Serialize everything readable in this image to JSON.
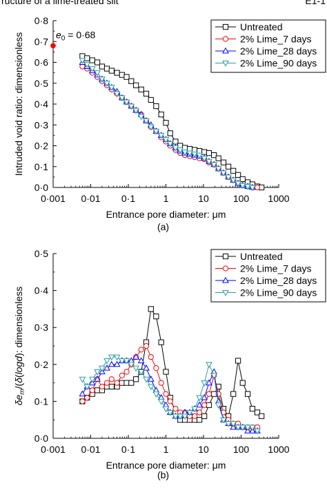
{
  "header": {
    "left": "ructure of a lime-treated silt",
    "right": "E1-1"
  },
  "chart_data": [
    {
      "panel": "(a)",
      "type": "line",
      "x_scale": "log",
      "xlim": [
        0.001,
        1000
      ],
      "ylim": [
        0,
        0.8
      ],
      "x_ticks": [
        "0·001",
        "0·01",
        "0·1",
        "1",
        "10",
        "100",
        "1000"
      ],
      "y_ticks": [
        "0·0",
        "0·1",
        "0·2",
        "0·3",
        "0·4",
        "0·5",
        "0·6",
        "0·7",
        "0·8"
      ],
      "xlabel": "Entrance pore diameter: μm",
      "ylabel": "Intruded void ratio: dimensionless",
      "annotation": {
        "symbol": "e",
        "subscript": "0",
        "text": " = 0·68",
        "x": 0.001,
        "y": 0.68
      },
      "legend_position": "top-right",
      "series": [
        {
          "name": "Untreated",
          "color": "#000000",
          "marker": "square",
          "x": [
            0.006,
            0.008,
            0.011,
            0.015,
            0.02,
            0.027,
            0.036,
            0.05,
            0.068,
            0.09,
            0.12,
            0.16,
            0.22,
            0.3,
            0.4,
            0.55,
            0.75,
            1,
            1.3,
            1.8,
            2.4,
            3.2,
            4.3,
            5.8,
            7.8,
            10.5,
            14,
            19,
            25,
            34,
            46,
            62,
            83,
            110,
            150,
            200,
            270,
            350
          ],
          "y": [
            0.63,
            0.62,
            0.61,
            0.6,
            0.58,
            0.57,
            0.56,
            0.55,
            0.54,
            0.53,
            0.51,
            0.49,
            0.47,
            0.45,
            0.42,
            0.39,
            0.35,
            0.31,
            0.26,
            0.22,
            0.2,
            0.19,
            0.185,
            0.18,
            0.175,
            0.17,
            0.165,
            0.155,
            0.14,
            0.12,
            0.1,
            0.08,
            0.06,
            0.04,
            0.025,
            0.015,
            0.005,
            0.0
          ]
        },
        {
          "name": "2% Lime_7 days",
          "color": "#ff0000",
          "marker": "circle",
          "x": [
            0.006,
            0.008,
            0.011,
            0.015,
            0.02,
            0.027,
            0.036,
            0.05,
            0.068,
            0.09,
            0.12,
            0.16,
            0.22,
            0.3,
            0.4,
            0.55,
            0.75,
            1,
            1.3,
            1.8,
            2.4,
            3.2,
            4.3,
            5.8,
            7.8,
            10.5,
            14,
            19,
            25,
            34,
            46,
            62,
            83,
            110,
            150,
            200,
            270
          ],
          "y": [
            0.58,
            0.57,
            0.55,
            0.53,
            0.51,
            0.49,
            0.47,
            0.45,
            0.43,
            0.41,
            0.39,
            0.37,
            0.35,
            0.32,
            0.29,
            0.27,
            0.24,
            0.22,
            0.2,
            0.18,
            0.165,
            0.155,
            0.15,
            0.145,
            0.14,
            0.135,
            0.12,
            0.11,
            0.09,
            0.07,
            0.05,
            0.035,
            0.02,
            0.01,
            0.005,
            0.0,
            0.0
          ]
        },
        {
          "name": "2% Lime_28 days",
          "color": "#0000ff",
          "marker": "triangle-up",
          "x": [
            0.006,
            0.008,
            0.011,
            0.015,
            0.02,
            0.027,
            0.036,
            0.05,
            0.068,
            0.09,
            0.12,
            0.16,
            0.22,
            0.3,
            0.4,
            0.55,
            0.75,
            1,
            1.3,
            1.8,
            2.4,
            3.2,
            4.3,
            5.8,
            7.8,
            10.5,
            14,
            19,
            25,
            34,
            46,
            62,
            83,
            110,
            150,
            200
          ],
          "y": [
            0.6,
            0.58,
            0.56,
            0.54,
            0.52,
            0.5,
            0.48,
            0.46,
            0.43,
            0.41,
            0.39,
            0.37,
            0.35,
            0.32,
            0.3,
            0.27,
            0.25,
            0.23,
            0.21,
            0.19,
            0.175,
            0.165,
            0.16,
            0.155,
            0.15,
            0.14,
            0.125,
            0.11,
            0.09,
            0.07,
            0.05,
            0.035,
            0.02,
            0.01,
            0.005,
            0.0
          ]
        },
        {
          "name": "2% Lime_90 days",
          "color": "#2a9d9d",
          "marker": "triangle-down",
          "x": [
            0.006,
            0.008,
            0.011,
            0.015,
            0.02,
            0.027,
            0.036,
            0.05,
            0.068,
            0.09,
            0.12,
            0.16,
            0.22,
            0.3,
            0.4,
            0.55,
            0.75,
            1,
            1.3,
            1.8,
            2.4,
            3.2,
            4.3,
            5.8,
            7.8,
            10.5,
            14,
            19,
            25,
            34,
            46,
            62,
            83,
            110,
            150,
            200
          ],
          "y": [
            0.61,
            0.59,
            0.57,
            0.55,
            0.52,
            0.5,
            0.48,
            0.45,
            0.43,
            0.41,
            0.39,
            0.37,
            0.34,
            0.32,
            0.29,
            0.27,
            0.25,
            0.23,
            0.21,
            0.19,
            0.18,
            0.17,
            0.165,
            0.16,
            0.155,
            0.14,
            0.125,
            0.11,
            0.09,
            0.07,
            0.05,
            0.035,
            0.02,
            0.01,
            0.005,
            0.0
          ]
        }
      ]
    },
    {
      "panel": "(b)",
      "type": "line",
      "x_scale": "log",
      "xlim": [
        0.001,
        1000
      ],
      "ylim": [
        0,
        0.5
      ],
      "x_ticks": [
        "0·001",
        "0·01",
        "0·1",
        "1",
        "10",
        "100",
        "1000"
      ],
      "y_ticks": [
        "0·0",
        "0·1",
        "0·2",
        "0·3",
        "0·4",
        "0·5"
      ],
      "xlabel": "Entrance pore diameter: μm",
      "ylabel": "δe_m/δ(logd): dimensionless",
      "legend_position": "top-right",
      "series": [
        {
          "name": "Untreated",
          "color": "#000000",
          "marker": "square",
          "x": [
            0.006,
            0.008,
            0.011,
            0.015,
            0.02,
            0.027,
            0.036,
            0.05,
            0.068,
            0.09,
            0.12,
            0.16,
            0.22,
            0.3,
            0.4,
            0.55,
            0.75,
            1,
            1.3,
            1.8,
            2.4,
            3.2,
            4.3,
            5.8,
            7.8,
            10.5,
            14,
            19,
            25,
            34,
            46,
            62,
            83,
            110,
            150,
            200,
            270,
            350
          ],
          "y": [
            0.1,
            0.11,
            0.12,
            0.13,
            0.13,
            0.14,
            0.14,
            0.14,
            0.15,
            0.15,
            0.15,
            0.16,
            0.18,
            0.26,
            0.35,
            0.33,
            0.26,
            0.18,
            0.11,
            0.07,
            0.05,
            0.05,
            0.05,
            0.05,
            0.05,
            0.06,
            0.09,
            0.12,
            0.14,
            0.08,
            0.06,
            0.12,
            0.21,
            0.15,
            0.12,
            0.08,
            0.07,
            0.06
          ]
        },
        {
          "name": "2% Lime_7 days",
          "color": "#ff0000",
          "marker": "circle",
          "x": [
            0.006,
            0.008,
            0.011,
            0.015,
            0.02,
            0.027,
            0.036,
            0.05,
            0.068,
            0.09,
            0.12,
            0.16,
            0.22,
            0.3,
            0.4,
            0.55,
            0.75,
            1,
            1.3,
            1.8,
            2.4,
            3.2,
            4.3,
            5.8,
            7.8,
            10.5,
            14,
            19,
            25,
            34,
            46,
            62,
            83,
            110,
            150,
            200,
            270
          ],
          "y": [
            0.1,
            0.11,
            0.13,
            0.16,
            0.14,
            0.15,
            0.16,
            0.15,
            0.17,
            0.18,
            0.2,
            0.22,
            0.24,
            0.25,
            0.22,
            0.19,
            0.15,
            0.12,
            0.1,
            0.08,
            0.07,
            0.07,
            0.06,
            0.06,
            0.07,
            0.09,
            0.12,
            0.17,
            0.12,
            0.07,
            0.05,
            0.04,
            0.04,
            0.03,
            0.03,
            0.03,
            0.03
          ]
        },
        {
          "name": "2% Lime_28 days",
          "color": "#0000ff",
          "marker": "triangle-up",
          "x": [
            0.006,
            0.008,
            0.011,
            0.015,
            0.02,
            0.027,
            0.036,
            0.05,
            0.068,
            0.09,
            0.12,
            0.16,
            0.22,
            0.3,
            0.4,
            0.55,
            0.75,
            1,
            1.3,
            1.8,
            2.4,
            3.2,
            4.3,
            5.8,
            7.8,
            10.5,
            14,
            19,
            25,
            34,
            46,
            62,
            83,
            110,
            150,
            200,
            270
          ],
          "y": [
            0.12,
            0.14,
            0.15,
            0.16,
            0.18,
            0.19,
            0.2,
            0.2,
            0.21,
            0.21,
            0.21,
            0.22,
            0.21,
            0.19,
            0.16,
            0.13,
            0.11,
            0.09,
            0.07,
            0.06,
            0.06,
            0.07,
            0.07,
            0.08,
            0.09,
            0.11,
            0.15,
            0.18,
            0.1,
            0.05,
            0.04,
            0.03,
            0.03,
            0.03,
            0.02,
            0.02,
            0.02
          ]
        },
        {
          "name": "2% Lime_90 days",
          "color": "#2a9d9d",
          "marker": "triangle-down",
          "x": [
            0.006,
            0.008,
            0.011,
            0.015,
            0.02,
            0.027,
            0.036,
            0.05,
            0.068,
            0.09,
            0.12,
            0.16,
            0.22,
            0.3,
            0.4,
            0.55,
            0.75,
            1,
            1.3,
            1.8,
            2.4,
            3.2,
            4.3,
            5.8,
            7.8,
            10.5,
            14,
            19,
            25,
            34,
            46,
            62,
            83,
            110,
            150,
            200,
            270
          ],
          "y": [
            0.16,
            0.14,
            0.16,
            0.18,
            0.19,
            0.21,
            0.22,
            0.22,
            0.21,
            0.21,
            0.2,
            0.19,
            0.18,
            0.16,
            0.14,
            0.12,
            0.1,
            0.08,
            0.07,
            0.06,
            0.06,
            0.06,
            0.07,
            0.08,
            0.11,
            0.15,
            0.2,
            0.17,
            0.09,
            0.05,
            0.04,
            0.04,
            0.03,
            0.03,
            0.03,
            0.03,
            0.02
          ]
        }
      ]
    }
  ]
}
